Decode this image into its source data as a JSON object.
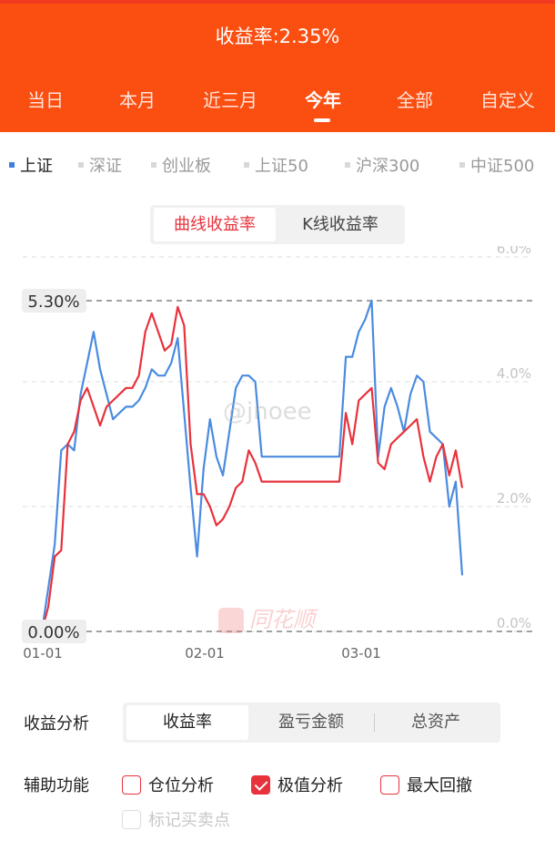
{
  "header": {
    "title": "收益率:2.35%",
    "tabs": [
      "当日",
      "本月",
      "近三月",
      "今年",
      "全部",
      "自定义"
    ],
    "active_tab": "今年"
  },
  "indices": {
    "items": [
      "上证",
      "深证",
      "创业板",
      "上证50",
      "沪深300",
      "中证500"
    ],
    "active": "上证"
  },
  "chart_toggle": {
    "options": [
      "曲线收益率",
      "K线收益率"
    ],
    "active": "曲线收益率"
  },
  "chart_data": {
    "type": "line",
    "x_ticks": [
      "01-01",
      "02-01",
      "03-01"
    ],
    "y_ticks": [
      "6.0%",
      "4.0%",
      "2.0%",
      "0.0%"
    ],
    "ylim": [
      0,
      6
    ],
    "grid": true,
    "max_label": "5.30%",
    "min_label": "0.00%",
    "max_value": 5.3,
    "min_value": 0.0,
    "series": [
      {
        "color": "#4a8be0",
        "values": [
          0.0,
          0.7,
          1.4,
          2.9,
          3.0,
          2.9,
          3.8,
          4.3,
          4.8,
          4.2,
          3.8,
          3.4,
          3.5,
          3.6,
          3.6,
          3.7,
          3.9,
          4.2,
          4.1,
          4.1,
          4.3,
          4.7,
          3.5,
          2.3,
          1.2,
          2.6,
          3.4,
          2.8,
          2.5,
          3.2,
          3.9,
          4.1,
          4.1,
          4.0,
          2.8,
          2.8,
          2.8,
          2.8,
          2.8,
          2.8,
          2.8,
          2.8,
          2.8,
          2.8,
          2.8,
          2.8,
          2.8,
          4.4,
          4.4,
          4.8,
          5.0,
          5.3,
          2.8,
          3.6,
          3.9,
          3.6,
          3.2,
          3.8,
          4.1,
          4.0,
          3.2,
          3.1,
          3.0,
          2.0,
          2.4,
          0.9
        ]
      },
      {
        "color": "#e8323c",
        "values": [
          0.0,
          0.4,
          1.2,
          1.3,
          3.0,
          3.2,
          3.7,
          3.9,
          3.6,
          3.3,
          3.6,
          3.7,
          3.8,
          3.9,
          3.9,
          4.1,
          4.8,
          5.1,
          4.8,
          4.5,
          4.6,
          5.2,
          4.9,
          3.0,
          2.2,
          2.2,
          2.0,
          1.7,
          1.8,
          2.0,
          2.3,
          2.4,
          2.9,
          2.7,
          2.4,
          2.4,
          2.4,
          2.4,
          2.4,
          2.4,
          2.4,
          2.4,
          2.4,
          2.4,
          2.4,
          2.4,
          2.4,
          3.5,
          3.0,
          3.7,
          3.8,
          3.9,
          2.7,
          2.6,
          3.0,
          3.1,
          3.2,
          3.3,
          3.4,
          2.8,
          2.4,
          2.8,
          3.0,
          2.5,
          2.9,
          2.3
        ]
      }
    ]
  },
  "watermark": "@jnoee",
  "logo_watermark": "同花顺",
  "analysis": {
    "label": "收益分析",
    "options": [
      "收益率",
      "盈亏金额",
      "总资产"
    ],
    "active": "收益率"
  },
  "aux": {
    "label": "辅助功能",
    "options": [
      {
        "label": "仓位分析",
        "checked": false,
        "disabled": false
      },
      {
        "label": "极值分析",
        "checked": true,
        "disabled": false
      },
      {
        "label": "最大回撤",
        "checked": false,
        "disabled": false
      },
      {
        "label": "标记买卖点",
        "checked": false,
        "disabled": true
      }
    ]
  }
}
